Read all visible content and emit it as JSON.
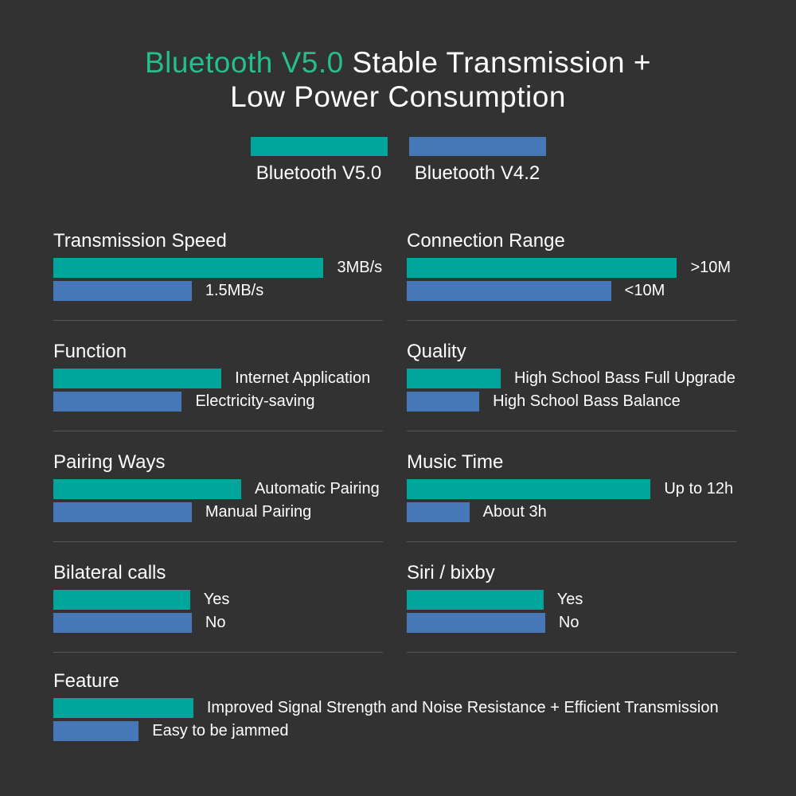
{
  "background": "#323232",
  "colors": {
    "v5_bar": "#00A59B",
    "v42_bar": "#4678B7",
    "title_highlight": "#25BE8F",
    "text": "#FFFFFF",
    "divider": "#565656"
  },
  "title": {
    "highlight": "Bluetooth V5.0",
    "line1_rest": "Stable Transmission +",
    "line2": "Low Power Consumption"
  },
  "legend": [
    {
      "label": "Bluetooth V5.0",
      "color": "#00A59B"
    },
    {
      "label": "Bluetooth V4.2",
      "color": "#4678B7"
    }
  ],
  "chart_data": {
    "type": "bar",
    "orientation": "horizontal",
    "grid": false,
    "legend_position": "top",
    "title": "Bluetooth V5.0 Stable Transmission + Low Power Consumption",
    "legend": [
      "Bluetooth V5.0",
      "Bluetooth V4.2"
    ],
    "sections": [
      {
        "title": "Transmission Speed",
        "column": "left",
        "bars": [
          {
            "series": "Bluetooth V5.0",
            "label": "3MB/s",
            "value": 3,
            "unit": "MB/s",
            "pct": 82
          },
          {
            "series": "Bluetooth V4.2",
            "label": "1.5MB/s",
            "value": 1.5,
            "unit": "MB/s",
            "pct": 42
          }
        ]
      },
      {
        "title": "Connection Range",
        "column": "right",
        "bars": [
          {
            "series": "Bluetooth V5.0",
            "label": ">10M",
            "pct": 82
          },
          {
            "series": "Bluetooth V4.2",
            "label": "<10M",
            "pct": 62
          }
        ]
      },
      {
        "title": "Function",
        "column": "left",
        "bars": [
          {
            "series": "Bluetooth V5.0",
            "label": "Internet Application",
            "pct": 51
          },
          {
            "series": "Bluetooth V4.2",
            "label": "Electricity-saving",
            "pct": 39
          }
        ]
      },
      {
        "title": "Quality",
        "column": "right",
        "bars": [
          {
            "series": "Bluetooth V5.0",
            "label": "High School Bass Full Upgrade",
            "pct": 28.5
          },
          {
            "series": "Bluetooth V4.2",
            "label": "High School Bass Balance",
            "pct": 22
          }
        ]
      },
      {
        "title": "Pairing Ways",
        "column": "left",
        "bars": [
          {
            "series": "Bluetooth V5.0",
            "label": "Automatic Pairing",
            "pct": 57
          },
          {
            "series": "Bluetooth V4.2",
            "label": "Manual Pairing",
            "pct": 42
          }
        ]
      },
      {
        "title": "Music Time",
        "column": "right",
        "bars": [
          {
            "series": "Bluetooth V5.0",
            "label": "Up to 12h",
            "pct": 74
          },
          {
            "series": "Bluetooth V4.2",
            "label": "About 3h",
            "pct": 19
          }
        ]
      },
      {
        "title": "Bilateral calls",
        "column": "left",
        "bars": [
          {
            "series": "Bluetooth V5.0",
            "label": "Yes",
            "pct": 41.5
          },
          {
            "series": "Bluetooth V4.2",
            "label": "No",
            "pct": 42
          }
        ]
      },
      {
        "title": "Siri / bixby",
        "column": "right",
        "bars": [
          {
            "series": "Bluetooth V5.0",
            "label": "Yes",
            "pct": 41.5
          },
          {
            "series": "Bluetooth V4.2",
            "label": "No",
            "pct": 42
          }
        ]
      },
      {
        "title": "Feature",
        "column": "full",
        "bars": [
          {
            "series": "Bluetooth V5.0",
            "label": "Improved Signal Strength and Noise Resistance + Efficient Transmission",
            "pct": 20.5
          },
          {
            "series": "Bluetooth V4.2",
            "label": "Easy to be jammed",
            "pct": 12.5
          }
        ]
      }
    ]
  }
}
